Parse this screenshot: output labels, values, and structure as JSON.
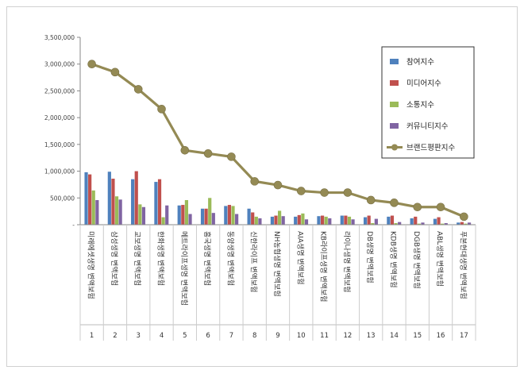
{
  "chart_data": {
    "type": "bar+line",
    "y_ticks": [
      "-",
      "500,000",
      "1,000,000",
      "1,500,000",
      "2,000,000",
      "2,500,000",
      "3,000,000",
      "3,500,000"
    ],
    "ylim": [
      0,
      3500000
    ],
    "grid": false,
    "legend_position": "right",
    "categories": [
      "미래에셋생명 변액보험",
      "삼성생명 변액보험",
      "교보생명 변액보험",
      "한화생명 변액보험",
      "메트라이프생명 변액보험",
      "흥국생명 변액보험",
      "동양생명 변액보험",
      "신한라이프 변액보험",
      "NH농협생명 변액보험",
      "AIA생명 변액보험",
      "KB라이프생명 변액보험",
      "라이나생명 변액보험",
      "DB생명 변액보험",
      "KDB생명 변액보험",
      "DGB생명 변액보험",
      "ABL생명 변액보험",
      "푸본현대생명 변액보험"
    ],
    "x_numbers": [
      "1",
      "2",
      "3",
      "4",
      "5",
      "6",
      "7",
      "8",
      "9",
      "10",
      "11",
      "12",
      "13",
      "14",
      "15",
      "16",
      "17"
    ],
    "series": [
      {
        "name": "참여지수",
        "color": "#4f81bd",
        "kind": "bar",
        "values": [
          980000,
          990000,
          850000,
          800000,
          360000,
          300000,
          350000,
          300000,
          150000,
          150000,
          160000,
          170000,
          140000,
          150000,
          120000,
          110000,
          40000
        ]
      },
      {
        "name": "미디어지수",
        "color": "#c0504d",
        "kind": "bar",
        "values": [
          940000,
          860000,
          1000000,
          850000,
          370000,
          300000,
          370000,
          230000,
          170000,
          180000,
          170000,
          170000,
          170000,
          170000,
          150000,
          140000,
          50000
        ]
      },
      {
        "name": "소통지수",
        "color": "#9bbb59",
        "kind": "bar",
        "values": [
          640000,
          530000,
          380000,
          140000,
          460000,
          500000,
          350000,
          150000,
          260000,
          210000,
          150000,
          150000,
          30000,
          30000,
          20000,
          20000,
          20000
        ]
      },
      {
        "name": "커뮤니티지수",
        "color": "#8064a2",
        "kind": "bar",
        "values": [
          460000,
          470000,
          330000,
          360000,
          200000,
          220000,
          200000,
          120000,
          160000,
          100000,
          120000,
          100000,
          110000,
          50000,
          40000,
          30000,
          40000
        ]
      },
      {
        "name": "브랜드평판지수",
        "color": "#948a54",
        "kind": "line",
        "values": [
          3000000,
          2850000,
          2530000,
          2160000,
          1390000,
          1330000,
          1270000,
          810000,
          740000,
          630000,
          600000,
          600000,
          460000,
          410000,
          330000,
          330000,
          150000
        ]
      }
    ]
  }
}
